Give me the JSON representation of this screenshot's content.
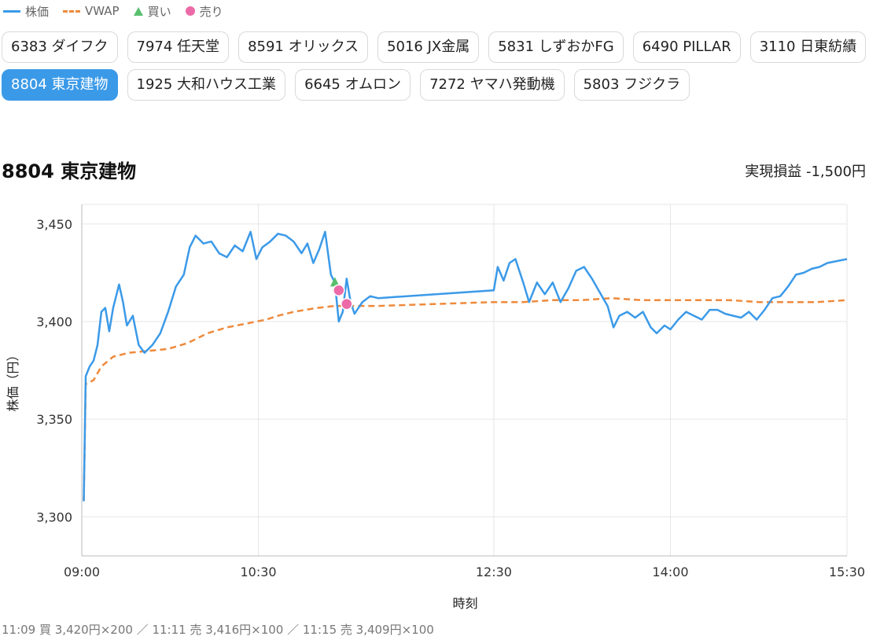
{
  "legend": {
    "price": "株価",
    "vwap": "VWAP",
    "buy": "買い",
    "sell": "売り"
  },
  "tabs": [
    {
      "label": "6383 ダイフク",
      "active": false
    },
    {
      "label": "7974 任天堂",
      "active": false
    },
    {
      "label": "8591 オリックス",
      "active": false
    },
    {
      "label": "5016 JX金属",
      "active": false
    },
    {
      "label": "5831 しずおかFG",
      "active": false
    },
    {
      "label": "6490 PILLAR",
      "active": false
    },
    {
      "label": "3110 日東紡績",
      "active": false
    },
    {
      "label": "8804 東京建物",
      "active": true
    },
    {
      "label": "1925 大和ハウス工業",
      "active": false
    },
    {
      "label": "6645 オムロン",
      "active": false
    },
    {
      "label": "7272 ヤマハ発動機",
      "active": false
    },
    {
      "label": "5803 フジクラ",
      "active": false
    }
  ],
  "header": {
    "title": "8804 東京建物",
    "pnl": "実現損益 -1,500円"
  },
  "colors": {
    "price": "#3b9ae8",
    "vwap": "#ee8a3c",
    "buy": "#57c06e",
    "sell": "#ec6aa8",
    "active_tab": "#3b9ae8"
  },
  "chart_data": {
    "type": "line",
    "xlabel": "時刻",
    "ylabel": "株価（円）",
    "x_ticks": [
      "09:00",
      "10:30",
      "12:30",
      "14:00",
      "15:30"
    ],
    "y_ticks": [
      "3,300",
      "3,350",
      "3,400",
      "3,450"
    ],
    "ylim": [
      3280,
      3460
    ],
    "grid": true,
    "legend_position": "top-left",
    "series": [
      {
        "name": "株価",
        "style": "solid",
        "points": [
          [
            "09:01",
            3308
          ],
          [
            "09:02",
            3372
          ],
          [
            "09:04",
            3377
          ],
          [
            "09:06",
            3380
          ],
          [
            "09:08",
            3388
          ],
          [
            "09:10",
            3405
          ],
          [
            "09:12",
            3407
          ],
          [
            "09:14",
            3395
          ],
          [
            "09:16",
            3407
          ],
          [
            "09:19",
            3419
          ],
          [
            "09:21",
            3410
          ],
          [
            "09:23",
            3398
          ],
          [
            "09:26",
            3403
          ],
          [
            "09:29",
            3388
          ],
          [
            "09:32",
            3384
          ],
          [
            "09:36",
            3388
          ],
          [
            "09:40",
            3394
          ],
          [
            "09:44",
            3405
          ],
          [
            "09:48",
            3418
          ],
          [
            "09:52",
            3424
          ],
          [
            "09:55",
            3438
          ],
          [
            "09:58",
            3444
          ],
          [
            "10:02",
            3440
          ],
          [
            "10:06",
            3441
          ],
          [
            "10:10",
            3435
          ],
          [
            "10:14",
            3433
          ],
          [
            "10:18",
            3439
          ],
          [
            "10:22",
            3436
          ],
          [
            "10:26",
            3446
          ],
          [
            "10:29",
            3432
          ],
          [
            "10:32",
            3438
          ],
          [
            "10:36",
            3441
          ],
          [
            "10:40",
            3445
          ],
          [
            "10:44",
            3444
          ],
          [
            "10:48",
            3441
          ],
          [
            "10:52",
            3435
          ],
          [
            "10:55",
            3440
          ],
          [
            "10:58",
            3430
          ],
          [
            "11:01",
            3437
          ],
          [
            "11:04",
            3446
          ],
          [
            "11:07",
            3424
          ],
          [
            "11:09",
            3420
          ],
          [
            "11:11",
            3400
          ],
          [
            "11:13",
            3405
          ],
          [
            "11:15",
            3422
          ],
          [
            "11:17",
            3410
          ],
          [
            "11:19",
            3404
          ],
          [
            "11:23",
            3410
          ],
          [
            "11:27",
            3413
          ],
          [
            "11:31",
            3412
          ],
          [
            "12:30",
            3416
          ],
          [
            "12:32",
            3428
          ],
          [
            "12:35",
            3421
          ],
          [
            "12:38",
            3430
          ],
          [
            "12:41",
            3432
          ],
          [
            "12:45",
            3420
          ],
          [
            "12:48",
            3410
          ],
          [
            "12:52",
            3420
          ],
          [
            "12:56",
            3414
          ],
          [
            "13:00",
            3420
          ],
          [
            "13:04",
            3410
          ],
          [
            "13:08",
            3417
          ],
          [
            "13:12",
            3426
          ],
          [
            "13:16",
            3428
          ],
          [
            "13:20",
            3422
          ],
          [
            "13:24",
            3415
          ],
          [
            "13:28",
            3408
          ],
          [
            "13:31",
            3397
          ],
          [
            "13:34",
            3403
          ],
          [
            "13:38",
            3405
          ],
          [
            "13:42",
            3402
          ],
          [
            "13:46",
            3405
          ],
          [
            "13:50",
            3397
          ],
          [
            "13:53",
            3394
          ],
          [
            "13:57",
            3398
          ],
          [
            "14:00",
            3396
          ],
          [
            "14:04",
            3401
          ],
          [
            "14:08",
            3405
          ],
          [
            "14:12",
            3403
          ],
          [
            "14:16",
            3401
          ],
          [
            "14:20",
            3406
          ],
          [
            "14:24",
            3406
          ],
          [
            "14:28",
            3404
          ],
          [
            "14:32",
            3403
          ],
          [
            "14:36",
            3402
          ],
          [
            "14:40",
            3405
          ],
          [
            "14:44",
            3401
          ],
          [
            "14:48",
            3406
          ],
          [
            "14:52",
            3412
          ],
          [
            "14:56",
            3413
          ],
          [
            "15:00",
            3418
          ],
          [
            "15:04",
            3424
          ],
          [
            "15:08",
            3425
          ],
          [
            "15:12",
            3427
          ],
          [
            "15:16",
            3428
          ],
          [
            "15:20",
            3430
          ],
          [
            "15:25",
            3431
          ],
          [
            "15:30",
            3432
          ]
        ]
      },
      {
        "name": "VWAP",
        "style": "dashed",
        "points": [
          [
            "09:01",
            3308
          ],
          [
            "09:02",
            3368
          ],
          [
            "09:06",
            3370
          ],
          [
            "09:10",
            3377
          ],
          [
            "09:16",
            3382
          ],
          [
            "09:24",
            3384
          ],
          [
            "09:34",
            3385
          ],
          [
            "09:44",
            3386
          ],
          [
            "09:54",
            3389
          ],
          [
            "10:04",
            3394
          ],
          [
            "10:14",
            3397
          ],
          [
            "10:24",
            3399
          ],
          [
            "10:34",
            3401
          ],
          [
            "10:40",
            3403
          ],
          [
            "10:48",
            3405
          ],
          [
            "11:00",
            3407
          ],
          [
            "11:09",
            3408
          ],
          [
            "11:20",
            3408
          ],
          [
            "11:31",
            3408
          ],
          [
            "12:30",
            3410
          ],
          [
            "12:45",
            3410
          ],
          [
            "13:00",
            3411
          ],
          [
            "13:15",
            3411
          ],
          [
            "13:30",
            3412
          ],
          [
            "13:45",
            3411
          ],
          [
            "14:00",
            3411
          ],
          [
            "14:15",
            3411
          ],
          [
            "14:30",
            3411
          ],
          [
            "14:45",
            3410
          ],
          [
            "15:00",
            3410
          ],
          [
            "15:15",
            3410
          ],
          [
            "15:30",
            3411
          ]
        ]
      }
    ],
    "markers": [
      {
        "name": "買い",
        "time": "11:09",
        "price": 3420,
        "qty": 200,
        "shape": "triangle"
      },
      {
        "name": "売り",
        "time": "11:11",
        "price": 3416,
        "qty": 100,
        "shape": "circle"
      },
      {
        "name": "売り",
        "time": "11:15",
        "price": 3409,
        "qty": 100,
        "shape": "circle"
      }
    ]
  },
  "footer": {
    "trades": "11:09 買 3,420円×200 ／ 11:11 売 3,416円×100 ／ 11:15 売 3,409円×100"
  }
}
